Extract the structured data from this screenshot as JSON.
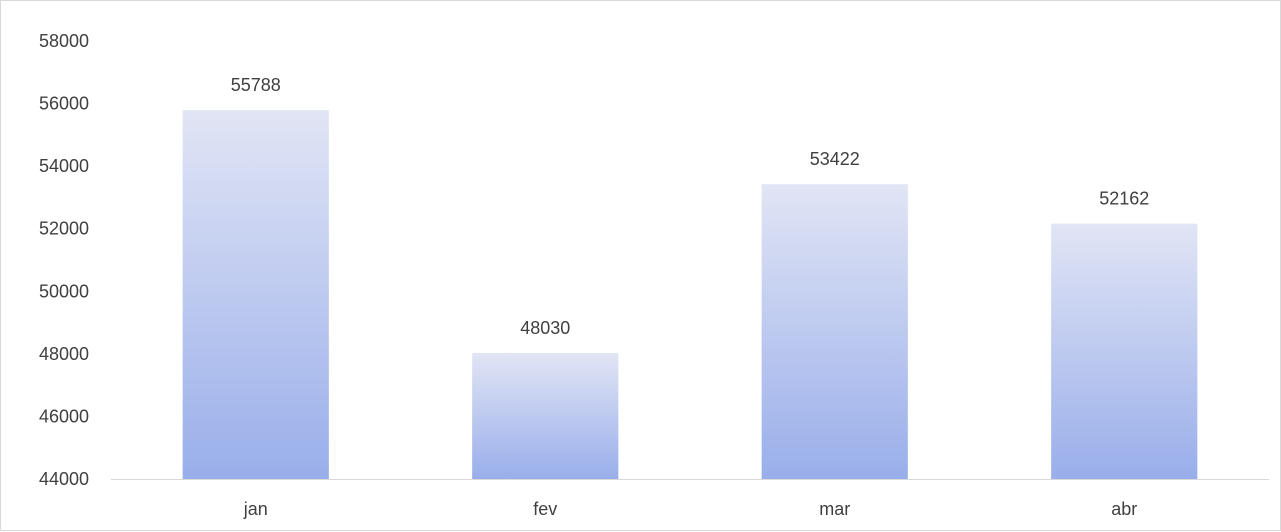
{
  "chart_data": {
    "type": "bar",
    "categories": [
      "jan",
      "fev",
      "mar",
      "abr"
    ],
    "values": [
      55788,
      48030,
      53422,
      52162
    ],
    "ylim": [
      44000,
      58000
    ],
    "yticks": [
      44000,
      46000,
      48000,
      50000,
      52000,
      54000,
      56000,
      58000
    ],
    "data_labels": [
      "55788",
      "48030",
      "53422",
      "52162"
    ],
    "grid": false,
    "legend": "none",
    "bar_gradient": {
      "top": "#e1e5f5",
      "bottom": "#99aeea"
    },
    "axis_color": "#d9d9d9",
    "text_color": "#404040"
  }
}
